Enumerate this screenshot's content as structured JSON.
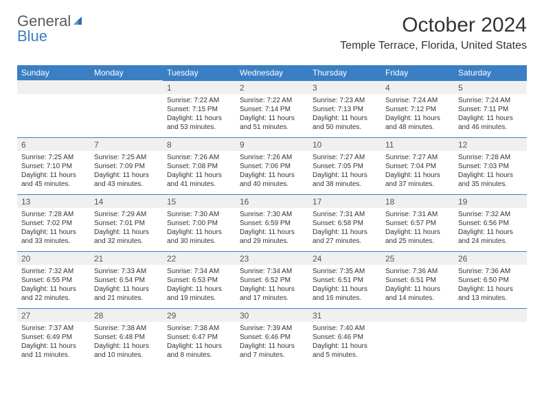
{
  "logo": {
    "word1": "General",
    "word2": "Blue"
  },
  "title": "October 2024",
  "location": "Temple Terrace, Florida, United States",
  "header_bg": "#3a7fc4",
  "daynum_bg": "#f0f0f0",
  "text_color": "#333333",
  "day_names": [
    "Sunday",
    "Monday",
    "Tuesday",
    "Wednesday",
    "Thursday",
    "Friday",
    "Saturday"
  ],
  "weeks": [
    [
      {
        "n": "",
        "sr": "",
        "ss": "",
        "dl": ""
      },
      {
        "n": "",
        "sr": "",
        "ss": "",
        "dl": ""
      },
      {
        "n": "1",
        "sr": "Sunrise: 7:22 AM",
        "ss": "Sunset: 7:15 PM",
        "dl": "Daylight: 11 hours and 53 minutes."
      },
      {
        "n": "2",
        "sr": "Sunrise: 7:22 AM",
        "ss": "Sunset: 7:14 PM",
        "dl": "Daylight: 11 hours and 51 minutes."
      },
      {
        "n": "3",
        "sr": "Sunrise: 7:23 AM",
        "ss": "Sunset: 7:13 PM",
        "dl": "Daylight: 11 hours and 50 minutes."
      },
      {
        "n": "4",
        "sr": "Sunrise: 7:24 AM",
        "ss": "Sunset: 7:12 PM",
        "dl": "Daylight: 11 hours and 48 minutes."
      },
      {
        "n": "5",
        "sr": "Sunrise: 7:24 AM",
        "ss": "Sunset: 7:11 PM",
        "dl": "Daylight: 11 hours and 46 minutes."
      }
    ],
    [
      {
        "n": "6",
        "sr": "Sunrise: 7:25 AM",
        "ss": "Sunset: 7:10 PM",
        "dl": "Daylight: 11 hours and 45 minutes."
      },
      {
        "n": "7",
        "sr": "Sunrise: 7:25 AM",
        "ss": "Sunset: 7:09 PM",
        "dl": "Daylight: 11 hours and 43 minutes."
      },
      {
        "n": "8",
        "sr": "Sunrise: 7:26 AM",
        "ss": "Sunset: 7:08 PM",
        "dl": "Daylight: 11 hours and 41 minutes."
      },
      {
        "n": "9",
        "sr": "Sunrise: 7:26 AM",
        "ss": "Sunset: 7:06 PM",
        "dl": "Daylight: 11 hours and 40 minutes."
      },
      {
        "n": "10",
        "sr": "Sunrise: 7:27 AM",
        "ss": "Sunset: 7:05 PM",
        "dl": "Daylight: 11 hours and 38 minutes."
      },
      {
        "n": "11",
        "sr": "Sunrise: 7:27 AM",
        "ss": "Sunset: 7:04 PM",
        "dl": "Daylight: 11 hours and 37 minutes."
      },
      {
        "n": "12",
        "sr": "Sunrise: 7:28 AM",
        "ss": "Sunset: 7:03 PM",
        "dl": "Daylight: 11 hours and 35 minutes."
      }
    ],
    [
      {
        "n": "13",
        "sr": "Sunrise: 7:28 AM",
        "ss": "Sunset: 7:02 PM",
        "dl": "Daylight: 11 hours and 33 minutes."
      },
      {
        "n": "14",
        "sr": "Sunrise: 7:29 AM",
        "ss": "Sunset: 7:01 PM",
        "dl": "Daylight: 11 hours and 32 minutes."
      },
      {
        "n": "15",
        "sr": "Sunrise: 7:30 AM",
        "ss": "Sunset: 7:00 PM",
        "dl": "Daylight: 11 hours and 30 minutes."
      },
      {
        "n": "16",
        "sr": "Sunrise: 7:30 AM",
        "ss": "Sunset: 6:59 PM",
        "dl": "Daylight: 11 hours and 29 minutes."
      },
      {
        "n": "17",
        "sr": "Sunrise: 7:31 AM",
        "ss": "Sunset: 6:58 PM",
        "dl": "Daylight: 11 hours and 27 minutes."
      },
      {
        "n": "18",
        "sr": "Sunrise: 7:31 AM",
        "ss": "Sunset: 6:57 PM",
        "dl": "Daylight: 11 hours and 25 minutes."
      },
      {
        "n": "19",
        "sr": "Sunrise: 7:32 AM",
        "ss": "Sunset: 6:56 PM",
        "dl": "Daylight: 11 hours and 24 minutes."
      }
    ],
    [
      {
        "n": "20",
        "sr": "Sunrise: 7:32 AM",
        "ss": "Sunset: 6:55 PM",
        "dl": "Daylight: 11 hours and 22 minutes."
      },
      {
        "n": "21",
        "sr": "Sunrise: 7:33 AM",
        "ss": "Sunset: 6:54 PM",
        "dl": "Daylight: 11 hours and 21 minutes."
      },
      {
        "n": "22",
        "sr": "Sunrise: 7:34 AM",
        "ss": "Sunset: 6:53 PM",
        "dl": "Daylight: 11 hours and 19 minutes."
      },
      {
        "n": "23",
        "sr": "Sunrise: 7:34 AM",
        "ss": "Sunset: 6:52 PM",
        "dl": "Daylight: 11 hours and 17 minutes."
      },
      {
        "n": "24",
        "sr": "Sunrise: 7:35 AM",
        "ss": "Sunset: 6:51 PM",
        "dl": "Daylight: 11 hours and 16 minutes."
      },
      {
        "n": "25",
        "sr": "Sunrise: 7:36 AM",
        "ss": "Sunset: 6:51 PM",
        "dl": "Daylight: 11 hours and 14 minutes."
      },
      {
        "n": "26",
        "sr": "Sunrise: 7:36 AM",
        "ss": "Sunset: 6:50 PM",
        "dl": "Daylight: 11 hours and 13 minutes."
      }
    ],
    [
      {
        "n": "27",
        "sr": "Sunrise: 7:37 AM",
        "ss": "Sunset: 6:49 PM",
        "dl": "Daylight: 11 hours and 11 minutes."
      },
      {
        "n": "28",
        "sr": "Sunrise: 7:38 AM",
        "ss": "Sunset: 6:48 PM",
        "dl": "Daylight: 11 hours and 10 minutes."
      },
      {
        "n": "29",
        "sr": "Sunrise: 7:38 AM",
        "ss": "Sunset: 6:47 PM",
        "dl": "Daylight: 11 hours and 8 minutes."
      },
      {
        "n": "30",
        "sr": "Sunrise: 7:39 AM",
        "ss": "Sunset: 6:46 PM",
        "dl": "Daylight: 11 hours and 7 minutes."
      },
      {
        "n": "31",
        "sr": "Sunrise: 7:40 AM",
        "ss": "Sunset: 6:46 PM",
        "dl": "Daylight: 11 hours and 5 minutes."
      },
      {
        "n": "",
        "sr": "",
        "ss": "",
        "dl": ""
      },
      {
        "n": "",
        "sr": "",
        "ss": "",
        "dl": ""
      }
    ]
  ]
}
